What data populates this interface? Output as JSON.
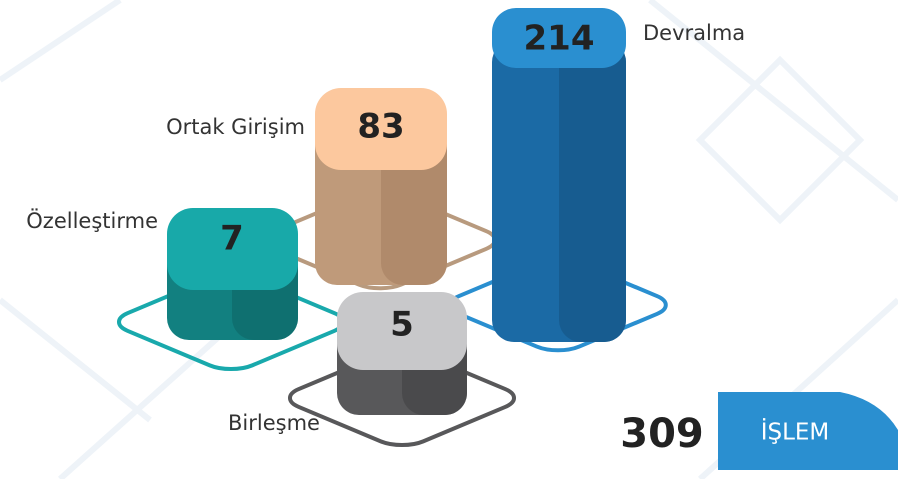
{
  "items": [
    {
      "label": "Devralma",
      "value": "214"
    },
    {
      "label": "Ortak Girişim",
      "value": "83"
    },
    {
      "label": "Özelleştirme",
      "value": "7"
    },
    {
      "label": "Birleşme",
      "value": "5"
    }
  ],
  "total": {
    "value": "309",
    "unit": "İŞLEM"
  }
}
